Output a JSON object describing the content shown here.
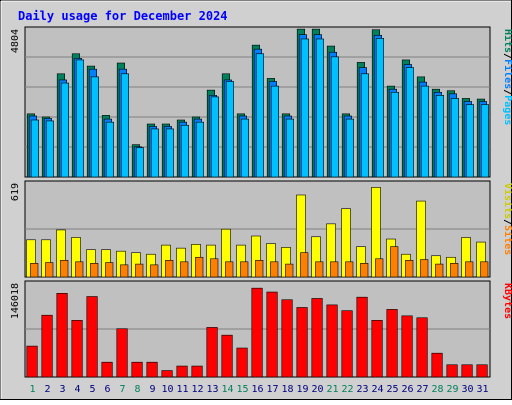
{
  "chart_data": {
    "type": "bar",
    "title": "Daily usage for December 2024",
    "days": [
      "1",
      "2",
      "3",
      "4",
      "5",
      "6",
      "7",
      "8",
      "9",
      "10",
      "11",
      "12",
      "13",
      "14",
      "15",
      "16",
      "17",
      "18",
      "19",
      "20",
      "21",
      "22",
      "23",
      "24",
      "25",
      "26",
      "27",
      "28",
      "29",
      "30",
      "31"
    ],
    "weekend_days": [
      "1",
      "7",
      "8",
      "14",
      "15",
      "21",
      "22",
      "28",
      "29"
    ],
    "colors": {
      "hits": "#00805c",
      "files": "#0080ff",
      "pages": "#00c0ff",
      "visits": "#ffff00",
      "sites": "#ff8000",
      "kbytes": "#ff0000",
      "title": "#0000ff",
      "weekday_label": "#000080",
      "weekend_label": "#00805c",
      "panel_bg": "#c0c0c0",
      "frame_bg": "#d0d0d0"
    },
    "panels": [
      {
        "id": "top",
        "ymax_label": "4804",
        "ymax": 4804,
        "legend": [
          {
            "text": "Hits",
            "color": "#00805c"
          },
          {
            "text": "/",
            "color": "#000000"
          },
          {
            "text": "Files",
            "color": "#0080ff"
          },
          {
            "text": "/",
            "color": "#000000"
          },
          {
            "text": "Pages",
            "color": "#00c0ff"
          }
        ],
        "series": [
          {
            "name": "Hits",
            "color": "#00805c",
            "values": [
              2050,
              1950,
              3350,
              4000,
              3600,
              2000,
              3700,
              1050,
              1720,
              1720,
              1850,
              1950,
              2820,
              3350,
              2050,
              4280,
              3200,
              2050,
              4800,
              4800,
              4250,
              2050,
              3720,
              4780,
              2950,
              3800,
              3250,
              2850,
              2800,
              2550,
              2530
            ]
          },
          {
            "name": "Files",
            "color": "#0080ff",
            "values": [
              1980,
              1900,
              3150,
              3850,
              3500,
              1880,
              3500,
              980,
              1640,
              1640,
              1780,
              1880,
              2650,
              3150,
              1980,
              4150,
              3100,
              1980,
              4620,
              4620,
              4050,
              1980,
              3550,
              4600,
              2850,
              3650,
              3080,
              2750,
              2700,
              2450,
              2450
            ]
          },
          {
            "name": "Pages",
            "color": "#00c0ff",
            "values": [
              1850,
              1820,
              3050,
              3800,
              3250,
              1780,
              3350,
              950,
              1560,
              1560,
              1680,
              1780,
              2600,
              3100,
              1880,
              4000,
              2950,
              1880,
              4480,
              4480,
              3900,
              1880,
              3350,
              4500,
              2750,
              3550,
              2950,
              2650,
              2550,
              2350,
              2350
            ]
          }
        ]
      },
      {
        "id": "middle",
        "ymax_label": "619",
        "ymax": 619,
        "legend": [
          {
            "text": "Visits",
            "color": "#cccc00"
          },
          {
            "text": "/",
            "color": "#000000"
          },
          {
            "text": "Sites",
            "color": "#ff8000"
          }
        ],
        "series": [
          {
            "name": "Visits",
            "color": "#ffff00",
            "values": [
              245,
              245,
              310,
              260,
              180,
              180,
              170,
              160,
              150,
              210,
              190,
              215,
              210,
              315,
              210,
              270,
              220,
              195,
              540,
              265,
              350,
              450,
              200,
              590,
              250,
              150,
              500,
              140,
              130,
              260,
              230
            ]
          },
          {
            "name": "Sites",
            "color": "#ff8000",
            "values": [
              90,
              95,
              110,
              100,
              90,
              95,
              80,
              85,
              80,
              110,
              100,
              130,
              120,
              100,
              100,
              110,
              100,
              85,
              160,
              100,
              100,
              100,
              90,
              120,
              200,
              110,
              115,
              85,
              90,
              100,
              100
            ]
          }
        ]
      },
      {
        "id": "bottom",
        "ymax_label": "146018",
        "ymax": 146018,
        "legend": [
          {
            "text": "KBytes",
            "color": "#ff0000"
          }
        ],
        "series": [
          {
            "name": "KBytes",
            "color": "#ff0000",
            "values": [
              48000,
              96000,
              130000,
              88000,
              125000,
              23000,
              75000,
              23000,
              23000,
              10000,
              17000,
              17000,
              77000,
              65000,
              45000,
              138000,
              132000,
              120000,
              108000,
              122000,
              112000,
              103000,
              124000,
              88000,
              105000,
              95000,
              92000,
              37000,
              19000,
              19000,
              19000
            ]
          }
        ]
      }
    ]
  }
}
